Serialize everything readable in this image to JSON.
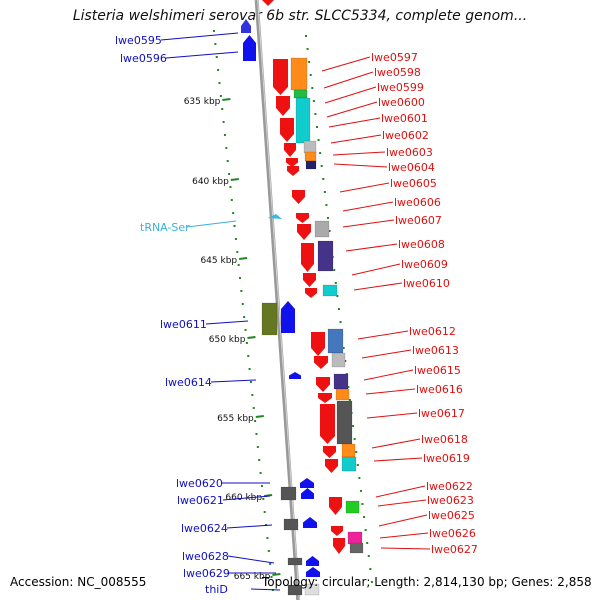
{
  "title": "Listeria welshimeri serovar 6b str. SLCC5334, complete genom...",
  "footer": {
    "accession": "Accession: NC_008555",
    "summary": "Topology: circular; Length: 2,814,130 bp; Genes: 2,858"
  },
  "colors": {
    "forward_label": "#1010c0",
    "reverse_label": "#e01010",
    "trna_label": "#3cb0d8",
    "backbone": "#999999",
    "tick": "#228822"
  },
  "ticks": [
    "635 kbp",
    "640 kbp",
    "645 kbp",
    "650 kbp",
    "655 kbp",
    "660 kbp",
    "665 kbp"
  ],
  "forward_labels": [
    "lwe0595",
    "lwe0596",
    "lwe0611",
    "lwe0614",
    "lwe0620",
    "lwe0621",
    "lwe0624",
    "lwe0628",
    "lwe0629",
    "thiD"
  ],
  "trna_labels": [
    "tRNA-Ser"
  ],
  "reverse_labels": [
    "lwe0597",
    "lwe0598",
    "lwe0599",
    "lwe0600",
    "lwe0601",
    "lwe0602",
    "lwe0603",
    "lwe0604",
    "lwe0605",
    "lwe0606",
    "lwe0607",
    "lwe0608",
    "lwe0609",
    "lwe0610",
    "lwe0612",
    "lwe0613",
    "lwe0615",
    "lwe0616",
    "lwe0617",
    "lwe0618",
    "lwe0619",
    "lwe0622",
    "lwe0623",
    "lwe0625",
    "lwe0626",
    "lwe0627"
  ]
}
